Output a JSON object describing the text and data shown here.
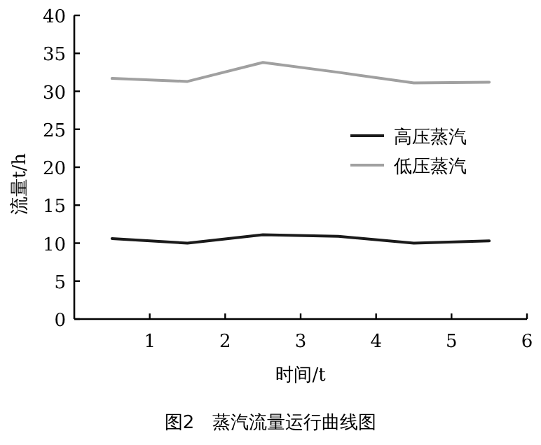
{
  "chart_data": {
    "type": "line",
    "title": "图2　蒸汽流量运行曲线图",
    "xlabel": "时间/t",
    "ylabel": "流量t/h",
    "x": [
      0.5,
      1.5,
      2.5,
      3.5,
      4.5,
      5.5
    ],
    "series": [
      {
        "name": "高压蒸汽",
        "color": "#1a1a1a",
        "values": [
          10.6,
          10.0,
          11.1,
          10.9,
          10.0,
          10.3
        ]
      },
      {
        "name": "低压蒸汽",
        "color": "#a0a0a0",
        "values": [
          31.7,
          31.3,
          33.8,
          32.5,
          31.1,
          31.2
        ]
      }
    ],
    "xlim": [
      0,
      6
    ],
    "xticks": [
      1,
      2,
      3,
      4,
      5,
      6
    ],
    "ylim": [
      0,
      40
    ],
    "yticks": [
      0,
      5,
      10,
      15,
      20,
      25,
      30,
      35,
      40
    ],
    "legend": "right",
    "grid": false,
    "marker": "none",
    "line_style": "solid"
  }
}
